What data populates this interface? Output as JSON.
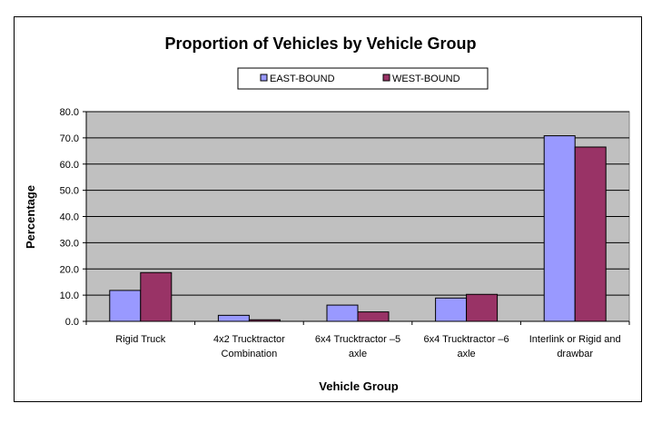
{
  "chart_data": {
    "type": "bar",
    "title": "Proportion of Vehicles by Vehicle Group",
    "xlabel": "Vehicle Group",
    "ylabel": "Percentage",
    "ylim": [
      0,
      80
    ],
    "yticks": [
      "0.0",
      "10.0",
      "20.0",
      "30.0",
      "40.0",
      "50.0",
      "60.0",
      "70.0",
      "80.0"
    ],
    "grid": true,
    "legend_position": "top",
    "categories": [
      [
        "Rigid Truck"
      ],
      [
        "4x2 Trucktractor",
        "Combination"
      ],
      [
        "6x4 Trucktractor –5",
        "axle"
      ],
      [
        "6x4 Trucktractor –6",
        "axle"
      ],
      [
        "Interlink or Rigid and",
        "drawbar"
      ]
    ],
    "series": [
      {
        "name": "EAST-BOUND",
        "color": "#9999ff",
        "values": [
          11.8,
          2.3,
          6.2,
          8.9,
          70.8
        ]
      },
      {
        "name": "WEST-BOUND",
        "color": "#993366",
        "values": [
          18.6,
          0.6,
          3.6,
          10.3,
          66.5
        ]
      }
    ],
    "plot_background": "#c0c0c0"
  }
}
